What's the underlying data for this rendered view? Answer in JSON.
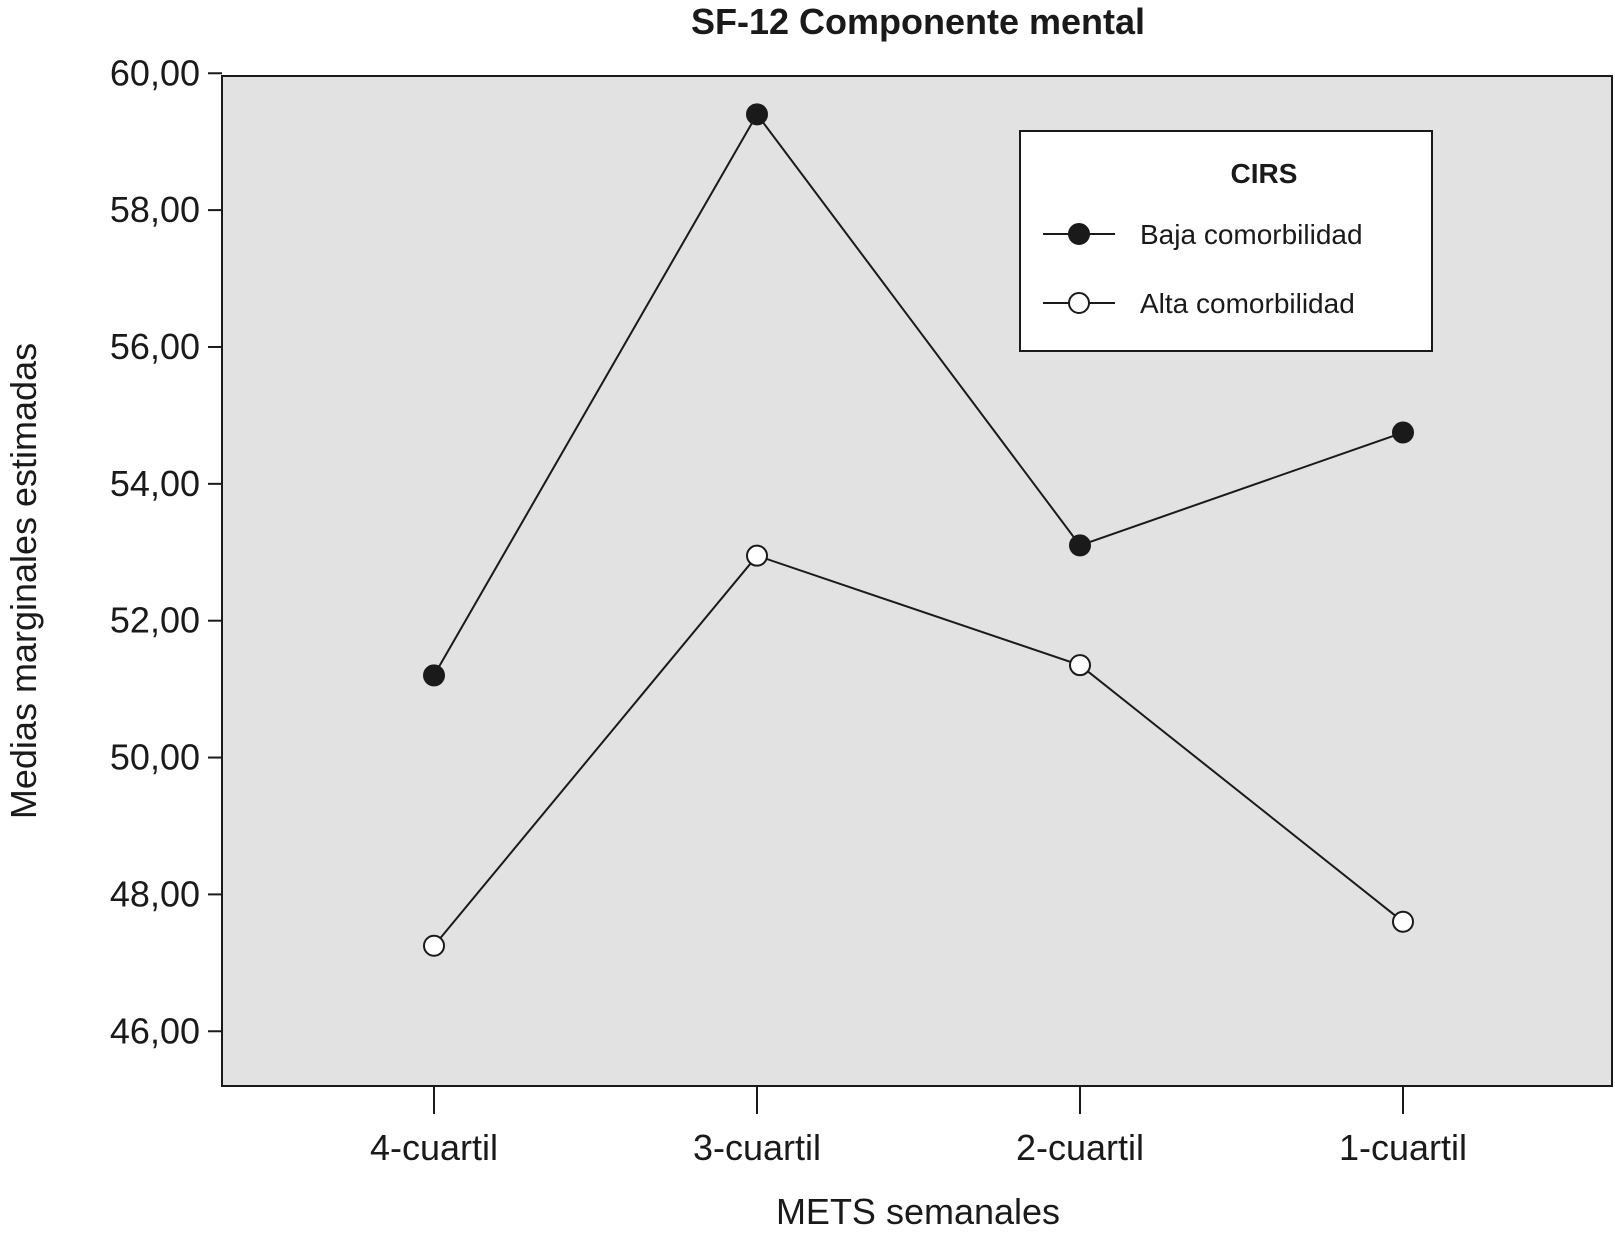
{
  "chart_data": {
    "type": "line",
    "title": "SF-12 Componente mental",
    "xlabel": "METS semanales",
    "ylabel": "Medias marginales estimadas",
    "categories": [
      "4-cuartil",
      "3-cuartil",
      "2-cuartil",
      "1-cuartil"
    ],
    "ylim": [
      45.2,
      59.96
    ],
    "yticks": [
      46,
      48,
      50,
      52,
      54,
      56,
      58,
      60
    ],
    "ytick_labels": [
      "46,00",
      "48,00",
      "50,00",
      "52,00",
      "54,00",
      "56,00",
      "58,00",
      "60,00"
    ],
    "grid": false,
    "legend": {
      "title": "CIRS",
      "position": "top-right"
    },
    "series": [
      {
        "name": "Baja comorbilidad",
        "marker": "filled-circle",
        "values": [
          51.2,
          59.4,
          53.1,
          54.75
        ]
      },
      {
        "name": "Alta comorbilidad",
        "marker": "open-circle",
        "values": [
          47.25,
          52.95,
          51.35,
          47.6
        ]
      }
    ],
    "colors": {
      "plot_background": "#e2e2e2",
      "line": "#1a1a1a",
      "filled_marker": "#1a1a1a",
      "open_marker": "#ffffff"
    }
  }
}
